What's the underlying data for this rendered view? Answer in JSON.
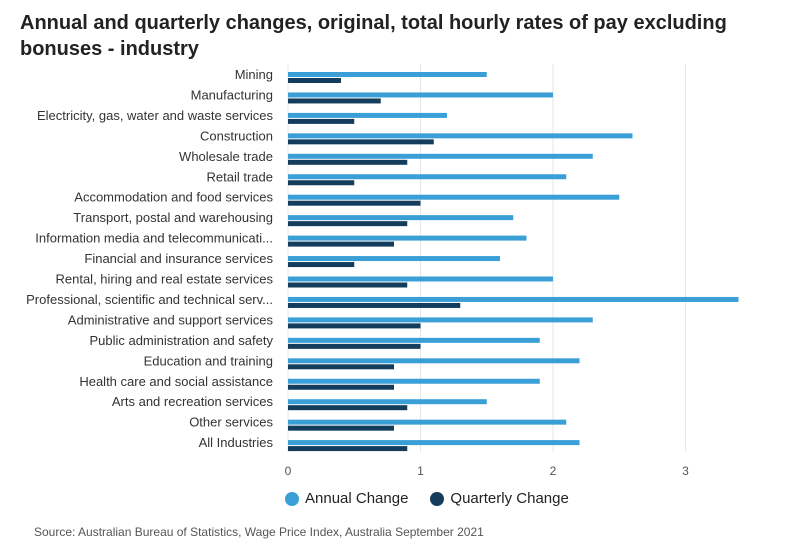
{
  "title": "Annual and quarterly changes, original, total hourly rates of pay excluding bonuses - industry",
  "source": "Source: Australian Bureau of Statistics, Wage Price Index, Australia September 2021",
  "colors": {
    "annual": "#3a9fd6",
    "quarterly": "#143c5c",
    "grid": "#e6e6e6"
  },
  "chart_data": {
    "type": "bar",
    "orientation": "horizontal",
    "categories": [
      "Mining",
      "Manufacturing",
      "Electricity, gas, water and waste services",
      "Construction",
      "Wholesale trade",
      "Retail trade",
      "Accommodation and food services",
      "Transport, postal and warehousing",
      "Information media and telecommunicati...",
      "Financial and insurance services",
      "Rental, hiring and real estate services",
      "Professional, scientific and technical serv...",
      "Administrative and support services",
      "Public administration and safety",
      "Education and training",
      "Health care and social assistance",
      "Arts and recreation services",
      "Other services",
      "All Industries"
    ],
    "series": [
      {
        "name": "Annual Change",
        "values": [
          1.5,
          2.0,
          1.2,
          2.6,
          2.3,
          2.1,
          2.5,
          1.7,
          1.8,
          1.6,
          2.0,
          3.4,
          2.3,
          1.9,
          2.2,
          1.9,
          1.5,
          2.1,
          2.2
        ]
      },
      {
        "name": "Quarterly Change",
        "values": [
          0.4,
          0.7,
          0.5,
          1.1,
          0.9,
          0.5,
          1.0,
          0.9,
          0.8,
          0.5,
          0.9,
          1.3,
          1.0,
          1.0,
          0.8,
          0.8,
          0.9,
          0.8,
          0.9
        ]
      }
    ],
    "xlim": [
      0,
      3.5
    ],
    "xticks": [
      0,
      1,
      2,
      3
    ],
    "grid": true,
    "legend": "bottom"
  }
}
